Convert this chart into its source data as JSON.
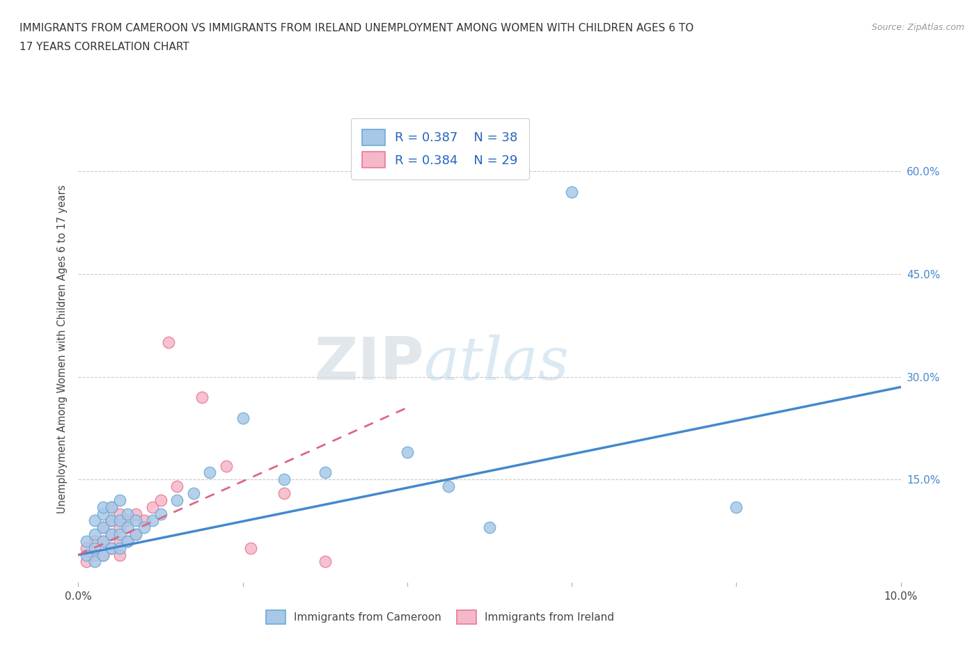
{
  "title_line1": "IMMIGRANTS FROM CAMEROON VS IMMIGRANTS FROM IRELAND UNEMPLOYMENT AMONG WOMEN WITH CHILDREN AGES 6 TO",
  "title_line2": "17 YEARS CORRELATION CHART",
  "source": "Source: ZipAtlas.com",
  "ylabel": "Unemployment Among Women with Children Ages 6 to 17 years",
  "xlim": [
    0.0,
    0.1
  ],
  "ylim": [
    0.0,
    0.68
  ],
  "xticks": [
    0.0,
    0.02,
    0.04,
    0.06,
    0.08,
    0.1
  ],
  "right_ytick_labels": [
    "15.0%",
    "30.0%",
    "45.0%",
    "60.0%"
  ],
  "right_ytick_values": [
    0.15,
    0.3,
    0.45,
    0.6
  ],
  "watermark_zip": "ZIP",
  "watermark_atlas": "atlas",
  "legend_r1": "R = 0.387",
  "legend_n1": "N = 38",
  "legend_r2": "R = 0.384",
  "legend_n2": "N = 29",
  "cameroon_color": "#a8c8e8",
  "ireland_color": "#f5b8c8",
  "cameroon_edge": "#6aaad4",
  "ireland_edge": "#e87898",
  "trend_cameroon_color": "#4488cc",
  "trend_ireland_color": "#dd6688",
  "grid_color": "#bbbbbb",
  "background_color": "#ffffff",
  "cameroon_x": [
    0.001,
    0.001,
    0.002,
    0.002,
    0.002,
    0.002,
    0.003,
    0.003,
    0.003,
    0.003,
    0.003,
    0.004,
    0.004,
    0.004,
    0.004,
    0.005,
    0.005,
    0.005,
    0.005,
    0.006,
    0.006,
    0.006,
    0.007,
    0.007,
    0.008,
    0.009,
    0.01,
    0.012,
    0.014,
    0.016,
    0.02,
    0.025,
    0.03,
    0.04,
    0.045,
    0.05,
    0.06,
    0.08
  ],
  "cameroon_y": [
    0.04,
    0.06,
    0.03,
    0.05,
    0.07,
    0.09,
    0.04,
    0.06,
    0.08,
    0.1,
    0.11,
    0.05,
    0.07,
    0.09,
    0.11,
    0.05,
    0.07,
    0.09,
    0.12,
    0.06,
    0.08,
    0.1,
    0.07,
    0.09,
    0.08,
    0.09,
    0.1,
    0.12,
    0.13,
    0.16,
    0.24,
    0.15,
    0.16,
    0.19,
    0.14,
    0.08,
    0.57,
    0.11
  ],
  "ireland_x": [
    0.001,
    0.001,
    0.002,
    0.002,
    0.003,
    0.003,
    0.003,
    0.004,
    0.004,
    0.004,
    0.004,
    0.005,
    0.005,
    0.005,
    0.005,
    0.006,
    0.006,
    0.007,
    0.007,
    0.008,
    0.009,
    0.01,
    0.011,
    0.012,
    0.015,
    0.018,
    0.021,
    0.025,
    0.03
  ],
  "ireland_y": [
    0.03,
    0.05,
    0.04,
    0.06,
    0.04,
    0.06,
    0.08,
    0.05,
    0.07,
    0.09,
    0.11,
    0.04,
    0.06,
    0.08,
    0.1,
    0.06,
    0.09,
    0.07,
    0.1,
    0.09,
    0.11,
    0.12,
    0.35,
    0.14,
    0.27,
    0.17,
    0.05,
    0.13,
    0.03
  ],
  "cam_trend_x0": 0.0,
  "cam_trend_x1": 0.1,
  "cam_trend_y0": 0.04,
  "cam_trend_y1": 0.285,
  "ire_trend_x0": 0.0,
  "ire_trend_x1": 0.04,
  "ire_trend_y0": 0.04,
  "ire_trend_y1": 0.255
}
